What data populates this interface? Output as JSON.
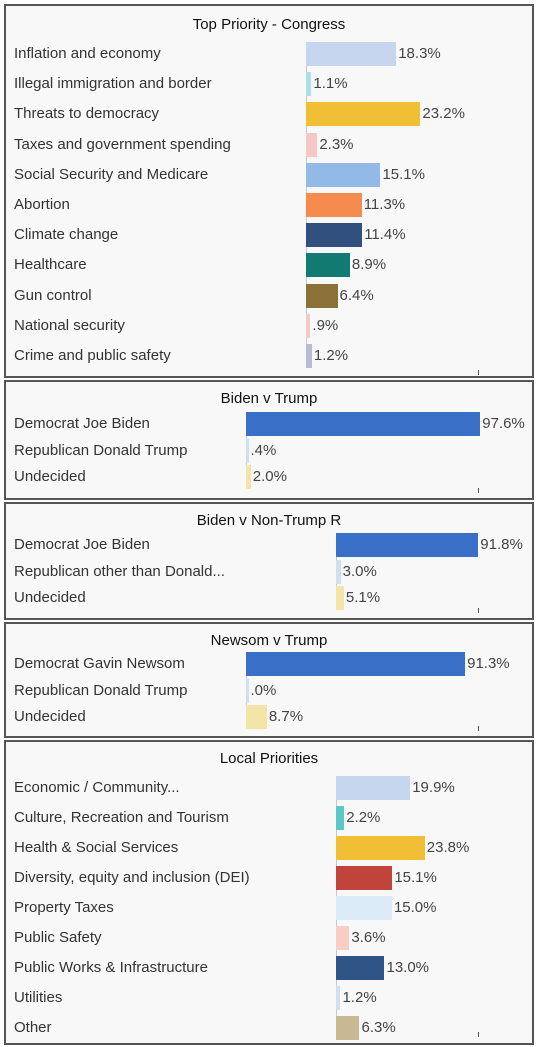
{
  "chart_data": [
    {
      "type": "bar",
      "orientation": "horizontal",
      "title": "Top Priority - Congress",
      "categories": [
        "Inflation and economy",
        "Illegal immigration and border",
        "Threats to democracy",
        "Taxes and government spending",
        "Social Security and Medicare",
        "Abortion",
        "Climate change",
        "Healthcare",
        "Gun control",
        "National security",
        "Crime and public safety"
      ],
      "values": [
        18.3,
        1.1,
        23.2,
        2.3,
        15.1,
        11.3,
        11.4,
        8.9,
        6.4,
        0.9,
        1.2
      ],
      "value_labels": [
        "18.3%",
        "1.1%",
        "23.2%",
        "2.3%",
        "15.1%",
        "11.3%",
        "11.4%",
        "8.9%",
        "6.4%",
        ".9%",
        "1.2%"
      ],
      "colors": [
        "#c5d6ee",
        "#a8e0e4",
        "#f0bf35",
        "#f6c7c5",
        "#93b9e6",
        "#f58b4e",
        "#31507e",
        "#127a70",
        "#8a7137",
        "#f4c7c9",
        "#b8bad0"
      ]
    },
    {
      "type": "bar",
      "orientation": "horizontal",
      "title": "Biden v Trump",
      "categories": [
        "Democrat Joe Biden",
        "Republican Donald Trump",
        "Undecided"
      ],
      "values": [
        97.6,
        0.4,
        2.0
      ],
      "value_labels": [
        "97.6%",
        ".4%",
        "2.0%"
      ],
      "colors": [
        "#3a6fc8",
        "#cfe0ef",
        "#f5e4a8"
      ]
    },
    {
      "type": "bar",
      "orientation": "horizontal",
      "title": "Biden v Non-Trump R",
      "categories": [
        "Democrat Joe Biden",
        "Republican other than Donald...",
        "Undecided"
      ],
      "values": [
        91.8,
        3.0,
        5.1
      ],
      "value_labels": [
        "91.8%",
        "3.0%",
        "5.1%"
      ],
      "colors": [
        "#3a6fc8",
        "#cfe0ef",
        "#f5e4a8"
      ]
    },
    {
      "type": "bar",
      "orientation": "horizontal",
      "title": "Newsom v Trump",
      "categories": [
        "Democrat Gavin Newsom",
        "Republican Donald Trump",
        "Undecided"
      ],
      "values": [
        91.3,
        0.0,
        8.7
      ],
      "value_labels": [
        "91.3%",
        ".0%",
        "8.7%"
      ],
      "colors": [
        "#3a6fc8",
        "#cfe0ef",
        "#f5e4a8"
      ]
    },
    {
      "type": "bar",
      "orientation": "horizontal",
      "title": "Local Priorities",
      "categories": [
        "Economic / Community...",
        "Culture, Recreation and Tourism",
        "Health & Social Services",
        "Diversity, equity and inclusion (DEI)",
        "Property Taxes",
        "Public Safety",
        "Public Works & Infrastructure",
        "Utilities",
        "Other"
      ],
      "values": [
        19.9,
        2.2,
        23.8,
        15.1,
        15.0,
        3.6,
        13.0,
        1.2,
        6.3
      ],
      "value_labels": [
        "19.9%",
        "2.2%",
        "23.8%",
        "15.1%",
        "15.0%",
        "3.6%",
        "13.0%",
        "1.2%",
        "6.3%"
      ],
      "colors": [
        "#c5d6ee",
        "#5cc7c9",
        "#f0bf35",
        "#c0433c",
        "#daeaf6",
        "#f8cdc4",
        "#2e5585",
        "#cfe0ef",
        "#c8b893"
      ]
    }
  ]
}
